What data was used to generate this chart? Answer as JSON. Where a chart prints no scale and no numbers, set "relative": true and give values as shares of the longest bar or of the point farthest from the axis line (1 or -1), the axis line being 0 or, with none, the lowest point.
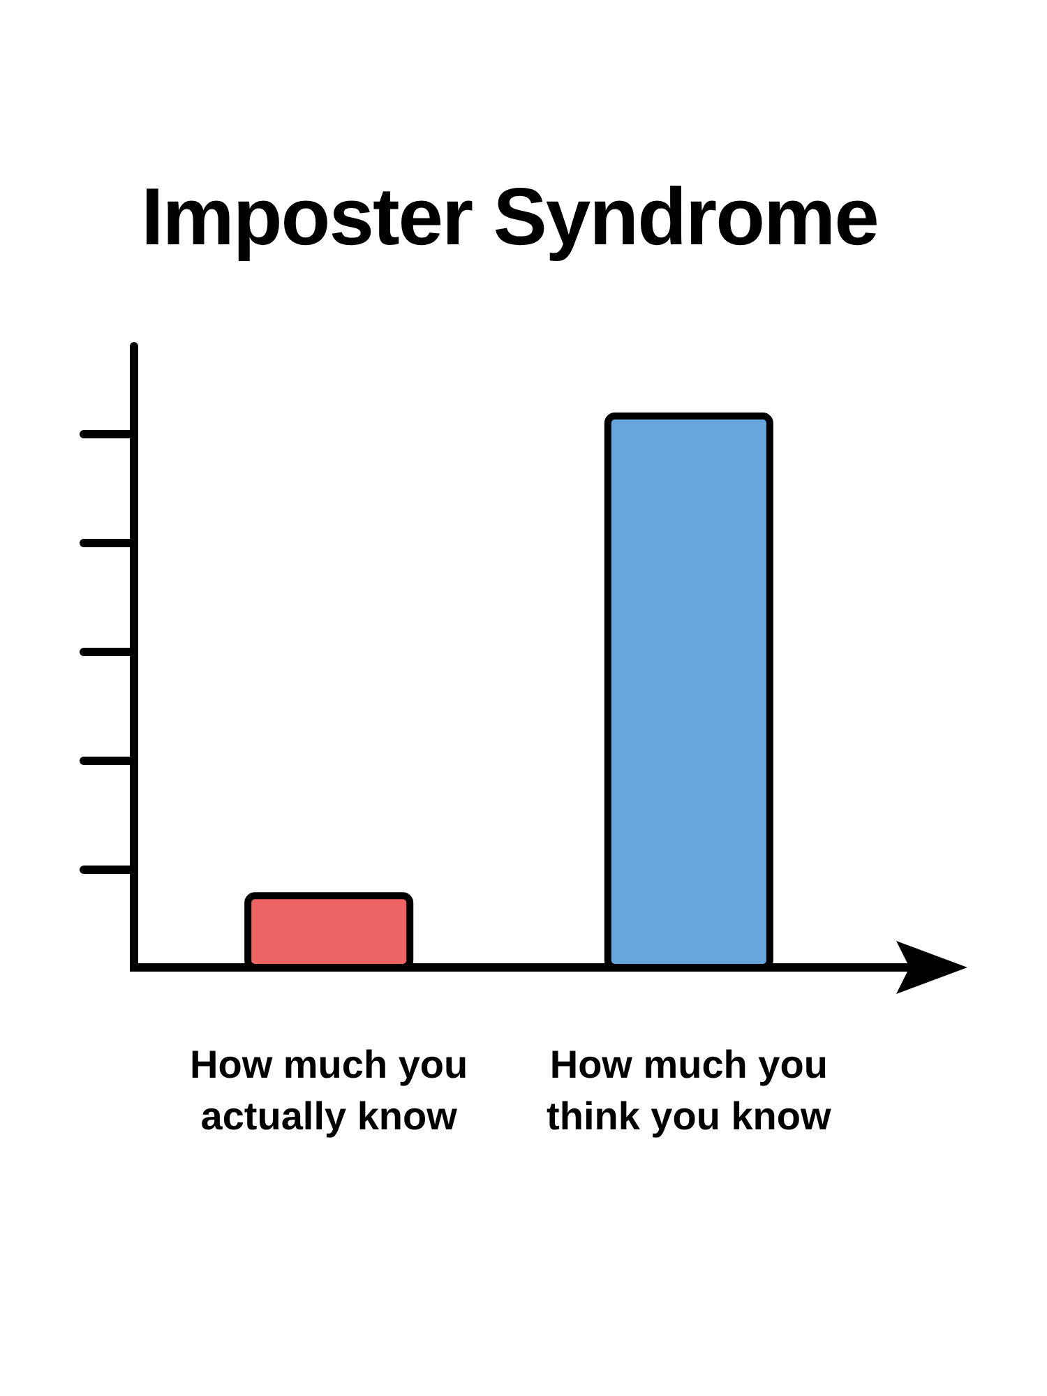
{
  "chart_data": {
    "type": "bar",
    "title": "Imposter Syndrome",
    "categories": [
      "How much you actually know",
      "How much you think you know"
    ],
    "values": [
      0.13,
      1
    ],
    "colors": [
      "#ec6464",
      "#67a6dc"
    ],
    "relative": true
  }
}
